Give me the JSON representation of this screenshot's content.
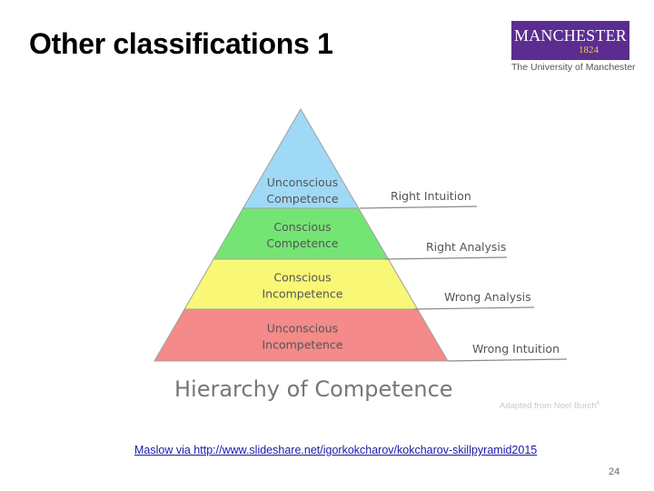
{
  "slide": {
    "title": "Other classifications 1",
    "page_number": "24"
  },
  "logo": {
    "wordmark": "MANCHESTER",
    "year": "1824",
    "caption": "The University of Manchester",
    "colors": {
      "background": "#5c2d91",
      "text": "#ffffff",
      "year": "#f2c84b"
    }
  },
  "diagram": {
    "caption": "Hierarchy of Competence",
    "credit": "Adapted from  Noel Burch",
    "credit_superscript": "4",
    "levels": [
      {
        "line1": "Unconscious",
        "line2": "Competence",
        "outcome": "Right Intuition",
        "color": "#9fd9f6"
      },
      {
        "line1": "Conscious",
        "line2": "Competence",
        "outcome": "Right Analysis",
        "color": "#74e574"
      },
      {
        "line1": "Conscious",
        "line2": "Incompetence",
        "outcome": "Wrong Analysis",
        "color": "#f8f876"
      },
      {
        "line1": "Unconscious",
        "line2": "Incompetence",
        "outcome": "Wrong Intuition",
        "color": "#f48a8a"
      }
    ]
  },
  "source": {
    "link_text": "Maslow via http://www.slideshare.net/igorkokcharov/kokcharov-skillpyramid2015"
  }
}
